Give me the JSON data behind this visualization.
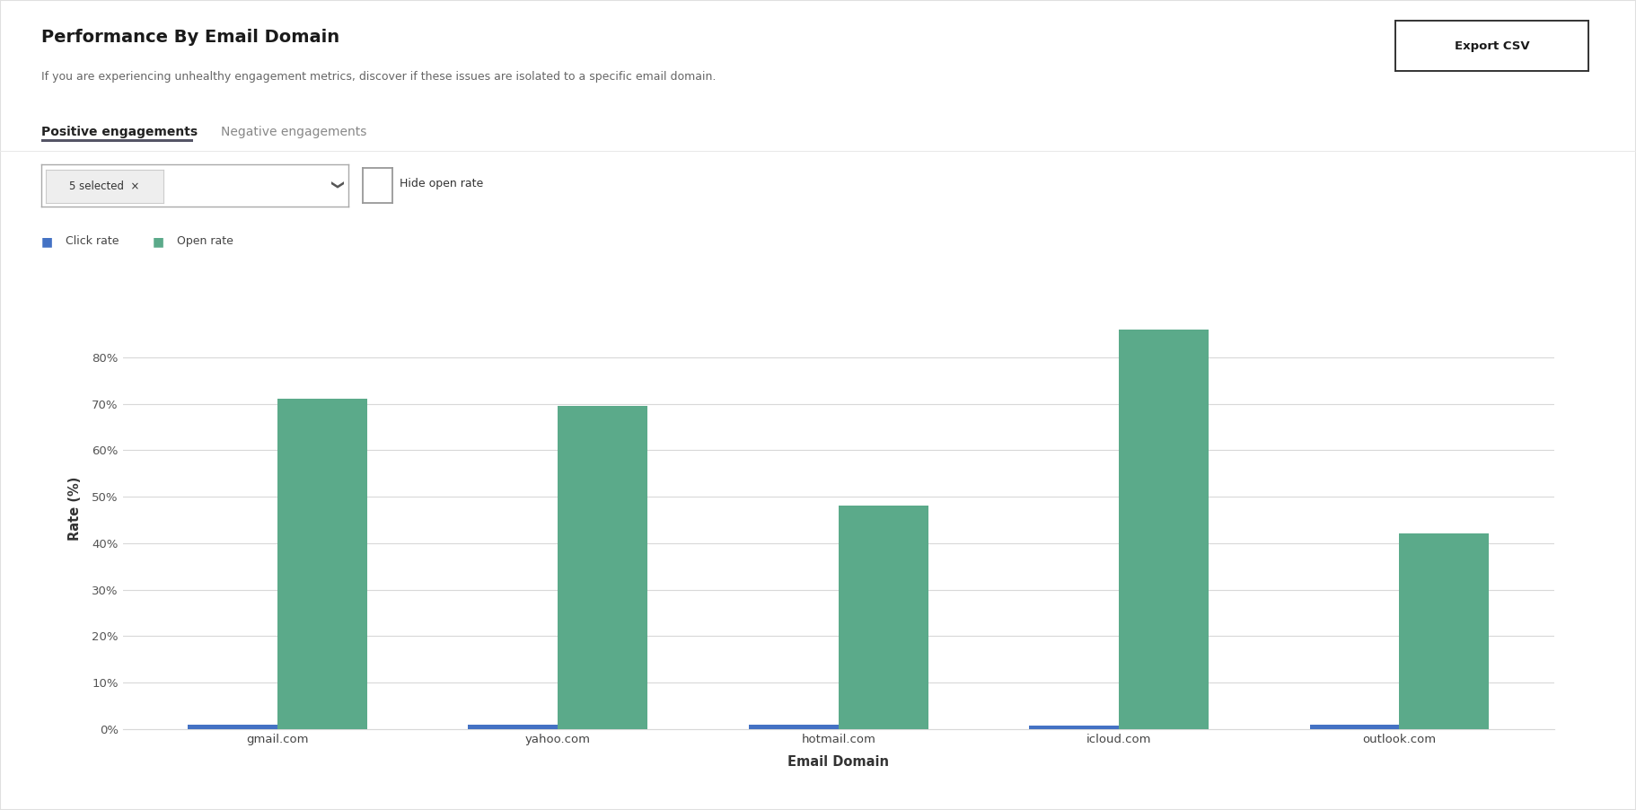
{
  "title": "Performance By Email Domain",
  "subtitle": "If you are experiencing unhealthy engagement metrics, discover if these issues are isolated to a specific email domain.",
  "tab_active": "Positive engagements",
  "tab_inactive": "Negative engagements",
  "xlabel": "Email Domain",
  "ylabel": "Rate (%)",
  "categories": [
    "gmail.com",
    "yahoo.com",
    "hotmail.com",
    "icloud.com",
    "outlook.com"
  ],
  "click_rate_values": [
    1.0,
    1.0,
    1.0,
    0.8,
    1.0
  ],
  "open_rate_values": [
    71.0,
    69.5,
    48.0,
    86.0,
    42.0
  ],
  "click_rate_color": "#4472c4",
  "open_rate_color": "#5baa8a",
  "background_color": "#ffffff",
  "plot_bg_color": "#ffffff",
  "border_color": "#e0e0e0",
  "ylim": [
    0,
    95
  ],
  "yticks": [
    0,
    10,
    20,
    30,
    40,
    50,
    60,
    70,
    80
  ],
  "bar_width": 0.32,
  "grid_color": "#d8d8d8",
  "legend_click": "Click rate",
  "legend_open": "Open rate",
  "title_fontsize": 14,
  "subtitle_fontsize": 9,
  "axis_label_fontsize": 10.5,
  "tick_fontsize": 9.5,
  "tab_underline_color": "#555566",
  "export_btn_color": "#222222",
  "dropdown_bg": "#f5f5f5",
  "checkbox_border": "#aaaaaa"
}
